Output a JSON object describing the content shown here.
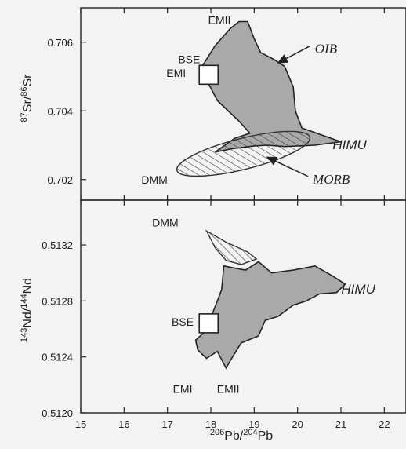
{
  "chart_data": [
    {
      "type": "scatter",
      "xlabel": {
        "iso_a": "206",
        "el_a": "Pb",
        "iso_b": "204",
        "el_b": "Pb"
      },
      "ylabel": {
        "iso_a": "87",
        "el_a": "Sr",
        "iso_b": "86",
        "el_b": "Sr"
      },
      "xlim": [
        15,
        22.5
      ],
      "ylim": [
        0.7014,
        0.707
      ],
      "y_ticks": [
        0.702,
        0.704,
        0.706
      ],
      "y_tick_labels": [
        "0.702",
        "0.704",
        "0.706"
      ],
      "x_ticks": [
        15,
        16,
        17,
        18,
        19,
        20,
        21,
        22
      ],
      "fields": [
        {
          "name": "OIB",
          "style": "filled",
          "color": "#a9a9a9",
          "polygon": [
            [
              17.85,
              0.7054
            ],
            [
              18.1,
              0.7059
            ],
            [
              18.45,
              0.7064
            ],
            [
              18.65,
              0.7066
            ],
            [
              18.85,
              0.7066
            ],
            [
              19.0,
              0.7061
            ],
            [
              19.15,
              0.7057
            ],
            [
              19.45,
              0.7055
            ],
            [
              19.7,
              0.7053
            ],
            [
              19.9,
              0.7047
            ],
            [
              19.95,
              0.704
            ],
            [
              20.1,
              0.7035
            ],
            [
              20.55,
              0.7033
            ],
            [
              21.0,
              0.7031
            ],
            [
              20.4,
              0.703
            ],
            [
              19.7,
              0.70296
            ],
            [
              19.3,
              0.703
            ],
            [
              19.0,
              0.70298
            ],
            [
              18.5,
              0.7029
            ],
            [
              18.1,
              0.7028
            ],
            [
              18.55,
              0.7032
            ],
            [
              18.9,
              0.70335
            ],
            [
              18.65,
              0.7037
            ],
            [
              18.15,
              0.7043
            ],
            [
              17.9,
              0.7049
            ],
            [
              17.75,
              0.70525
            ]
          ]
        },
        {
          "name": "MORB",
          "style": "hatched",
          "color": "#333333",
          "ellipse": {
            "cx": 18.75,
            "cy": 0.70275,
            "rx": 1.58,
            "ry": 0.00045,
            "tilt_deg": -14
          }
        }
      ],
      "points": [
        {
          "label": "BSE",
          "x": 17.95,
          "y": 0.70505,
          "marker": "open-square"
        }
      ],
      "annotations": [
        {
          "text": "EMII",
          "x": 18.2,
          "y": 0.70665
        },
        {
          "text": "BSE",
          "x": 17.5,
          "y": 0.7055
        },
        {
          "text": "EMI",
          "x": 17.2,
          "y": 0.7051
        },
        {
          "text": "DMM",
          "x": 16.7,
          "y": 0.702
        },
        {
          "text": "OIB",
          "x": 20.4,
          "y": 0.7058,
          "italic": true,
          "arrow_to": [
            19.55,
            0.7054
          ]
        },
        {
          "text": "HIMU",
          "x": 21.2,
          "y": 0.703,
          "italic": true
        },
        {
          "text": "MORB",
          "x": 20.35,
          "y": 0.702,
          "italic": true,
          "arrow_to": [
            19.3,
            0.70265
          ]
        }
      ]
    },
    {
      "type": "scatter",
      "xlabel": {
        "iso_a": "206",
        "el_a": "Pb",
        "iso_b": "204",
        "el_b": "Pb"
      },
      "ylabel": {
        "iso_a": "143",
        "el_a": "Nd",
        "iso_b": "144",
        "el_b": "Nd"
      },
      "xlim": [
        15,
        22.5
      ],
      "ylim": [
        0.512,
        0.51352
      ],
      "y_ticks": [
        0.512,
        0.5124,
        0.5128,
        0.5132
      ],
      "y_tick_labels": [
        "0.5120",
        "0.5124",
        "0.5128",
        "0.5132"
      ],
      "x_ticks": [
        15,
        16,
        17,
        18,
        19,
        20,
        21,
        22
      ],
      "x_tick_labels": [
        "15",
        "16",
        "17",
        "18",
        "19",
        "20",
        "21",
        "22"
      ],
      "fields": [
        {
          "name": "OIB",
          "style": "filled",
          "color": "#a9a9a9",
          "polygon": [
            [
              18.3,
              0.51305
            ],
            [
              18.8,
              0.51302
            ],
            [
              19.1,
              0.51308
            ],
            [
              19.4,
              0.513
            ],
            [
              19.9,
              0.51302
            ],
            [
              20.4,
              0.51305
            ],
            [
              20.8,
              0.51298
            ],
            [
              21.1,
              0.51292
            ],
            [
              20.9,
              0.51286
            ],
            [
              20.5,
              0.51285
            ],
            [
              20.2,
              0.5128
            ],
            [
              19.9,
              0.51277
            ],
            [
              19.55,
              0.51269
            ],
            [
              19.25,
              0.51266
            ],
            [
              19.1,
              0.51255
            ],
            [
              18.7,
              0.5125
            ],
            [
              18.5,
              0.5124
            ],
            [
              18.35,
              0.51232
            ],
            [
              18.15,
              0.51244
            ],
            [
              17.9,
              0.51239
            ],
            [
              17.7,
              0.51245
            ],
            [
              17.65,
              0.51252
            ],
            [
              17.9,
              0.51259
            ],
            [
              18.05,
              0.51272
            ],
            [
              18.25,
              0.51288
            ]
          ]
        },
        {
          "name": "MORB",
          "style": "hatched",
          "color": "#333333",
          "polygon": [
            [
              17.9,
              0.5133
            ],
            [
              18.35,
              0.51322
            ],
            [
              18.85,
              0.51315
            ],
            [
              19.05,
              0.5131
            ],
            [
              18.7,
              0.51306
            ],
            [
              18.35,
              0.51309
            ],
            [
              18.1,
              0.51318
            ]
          ]
        }
      ],
      "points": [
        {
          "label": "BSE",
          "x": 17.95,
          "y": 0.51264,
          "marker": "open-square"
        }
      ],
      "annotations": [
        {
          "text": "DMM",
          "x": 16.95,
          "y": 0.51336
        },
        {
          "text": "HIMU",
          "x": 21.4,
          "y": 0.51288,
          "italic": true
        },
        {
          "text": "BSE",
          "x": 17.35,
          "y": 0.51265
        },
        {
          "text": "EMI",
          "x": 17.35,
          "y": 0.51217
        },
        {
          "text": "EMII",
          "x": 18.4,
          "y": 0.51217
        }
      ]
    }
  ]
}
